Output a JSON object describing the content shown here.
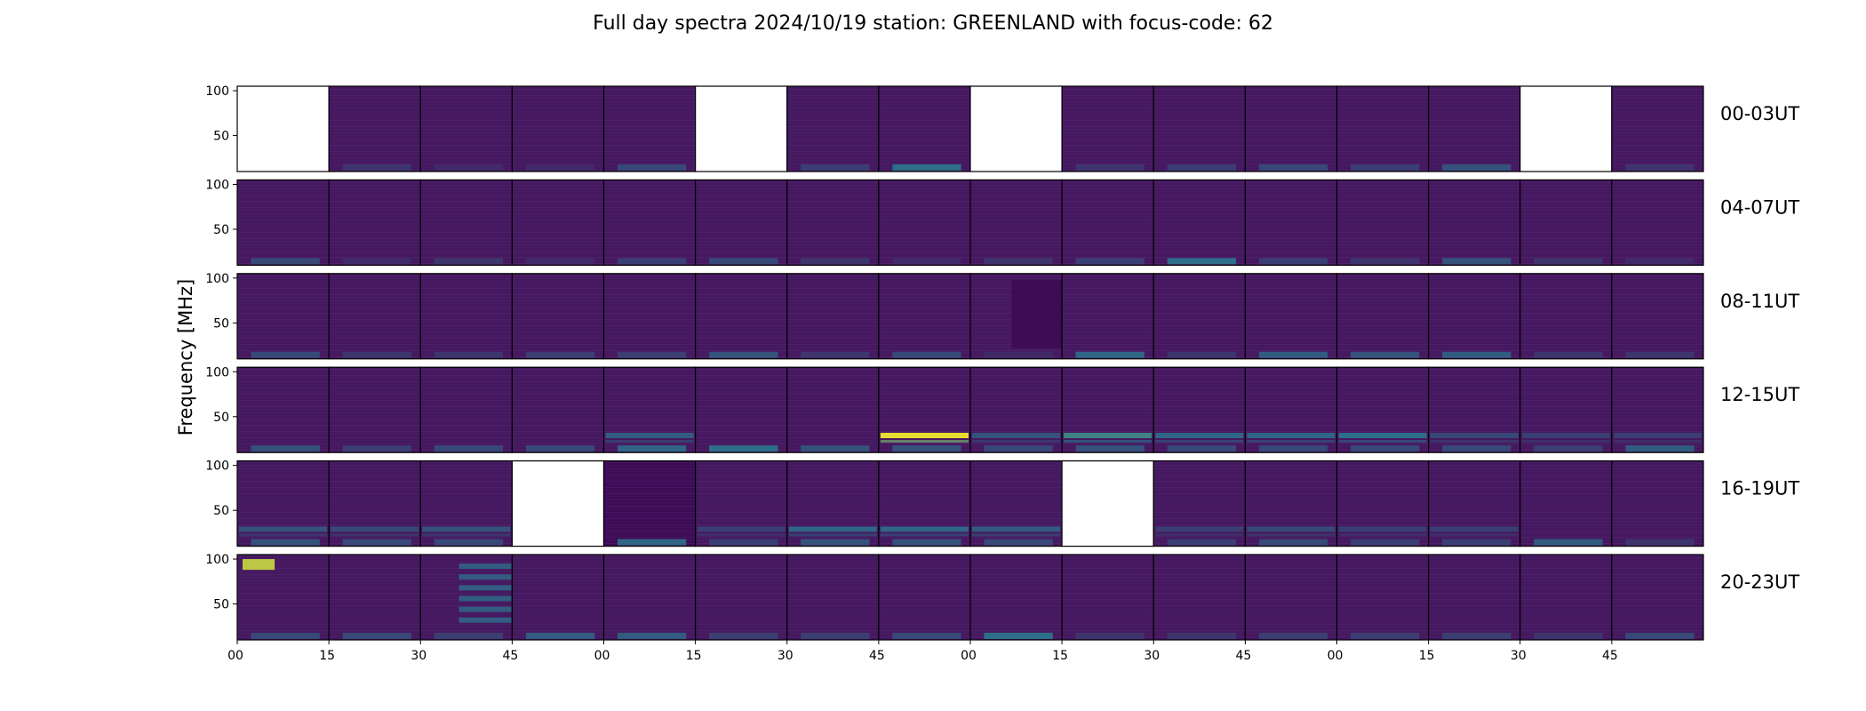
{
  "chart_data": {
    "type": "heatmap",
    "title": "Full day spectra 2024/10/19 station: GREENLAND with focus-code: 62",
    "ylabel": "Frequency [MHz]",
    "xlabel": "",
    "ylim": [
      10,
      105
    ],
    "y_ticks": [
      "100",
      "50"
    ],
    "x_ticks": [
      "00",
      "15",
      "30",
      "45",
      "00",
      "15",
      "30",
      "45",
      "00",
      "15",
      "30",
      "45",
      "00",
      "15",
      "30",
      "45"
    ],
    "colormap": "viridis",
    "colors": {
      "low": "#46185f",
      "mid": "#2a788e",
      "high": "#fde725",
      "frame": "#000000"
    },
    "rows": [
      {
        "label": "00-03UT",
        "panels": [
          {
            "data": false
          },
          {
            "data": true,
            "burst": 0.15
          },
          {
            "data": true,
            "burst": 0.1
          },
          {
            "data": true,
            "burst": 0.1
          },
          {
            "data": true,
            "burst": 0.25
          },
          {
            "data": false
          },
          {
            "data": true,
            "burst": 0.2
          },
          {
            "data": true,
            "burst": 0.45
          },
          {
            "data": false
          },
          {
            "data": true,
            "burst": 0.15
          },
          {
            "data": true,
            "burst": 0.2
          },
          {
            "data": true,
            "burst": 0.25
          },
          {
            "data": true,
            "burst": 0.2
          },
          {
            "data": true,
            "burst": 0.3
          },
          {
            "data": false
          },
          {
            "data": true,
            "burst": 0.15
          }
        ]
      },
      {
        "label": "04-07UT",
        "panels": [
          {
            "data": true,
            "burst": 0.25
          },
          {
            "data": true,
            "burst": 0.1
          },
          {
            "data": true,
            "burst": 0.15
          },
          {
            "data": true,
            "burst": 0.1
          },
          {
            "data": true,
            "burst": 0.2
          },
          {
            "data": true,
            "burst": 0.25
          },
          {
            "data": true,
            "burst": 0.15
          },
          {
            "data": true,
            "burst": 0.1
          },
          {
            "data": true,
            "burst": 0.15
          },
          {
            "data": true,
            "burst": 0.2
          },
          {
            "data": true,
            "burst": 0.45
          },
          {
            "data": true,
            "burst": 0.2
          },
          {
            "data": true,
            "burst": 0.15
          },
          {
            "data": true,
            "burst": 0.3
          },
          {
            "data": true,
            "burst": 0.15
          },
          {
            "data": true,
            "burst": 0.1
          }
        ]
      },
      {
        "label": "08-11UT",
        "panels": [
          {
            "data": true,
            "burst": 0.25
          },
          {
            "data": true,
            "burst": 0.15
          },
          {
            "data": true,
            "burst": 0.15
          },
          {
            "data": true,
            "burst": 0.2
          },
          {
            "data": true,
            "burst": 0.2
          },
          {
            "data": true,
            "burst": 0.3
          },
          {
            "data": true,
            "burst": 0.15
          },
          {
            "data": true,
            "burst": 0.25
          },
          {
            "data": true,
            "burst": 0.1,
            "gap": true
          },
          {
            "data": true,
            "burst": 0.4
          },
          {
            "data": true,
            "burst": 0.15
          },
          {
            "data": true,
            "burst": 0.35
          },
          {
            "data": true,
            "burst": 0.3
          },
          {
            "data": true,
            "burst": 0.35
          },
          {
            "data": true,
            "burst": 0.15
          },
          {
            "data": true,
            "burst": 0.15
          }
        ]
      },
      {
        "label": "12-15UT",
        "panels": [
          {
            "data": true,
            "burst": 0.3
          },
          {
            "data": true,
            "burst": 0.2
          },
          {
            "data": true,
            "burst": 0.25
          },
          {
            "data": true,
            "burst": 0.25
          },
          {
            "data": true,
            "burst": 0.4,
            "band": 0.35
          },
          {
            "data": true,
            "burst": 0.45
          },
          {
            "data": true,
            "burst": 0.3
          },
          {
            "data": true,
            "burst": 0.3,
            "band": 0.95
          },
          {
            "data": true,
            "burst": 0.25,
            "band": 0.3
          },
          {
            "data": true,
            "burst": 0.3,
            "band": 0.55
          },
          {
            "data": true,
            "burst": 0.25,
            "band": 0.4
          },
          {
            "data": true,
            "burst": 0.25,
            "band": 0.4
          },
          {
            "data": true,
            "burst": 0.25,
            "band": 0.45
          },
          {
            "data": true,
            "burst": 0.25,
            "band": 0.25
          },
          {
            "data": true,
            "burst": 0.2,
            "band": 0.2
          },
          {
            "data": true,
            "burst": 0.35,
            "band": 0.2
          }
        ]
      },
      {
        "label": "16-19UT",
        "panels": [
          {
            "data": true,
            "burst": 0.3,
            "band": 0.3
          },
          {
            "data": true,
            "burst": 0.25,
            "band": 0.25
          },
          {
            "data": true,
            "burst": 0.25,
            "band": 0.3
          },
          {
            "data": false
          },
          {
            "data": true,
            "burst": 0.4,
            "dark": true
          },
          {
            "data": true,
            "burst": 0.2,
            "band": 0.2
          },
          {
            "data": true,
            "burst": 0.3,
            "band": 0.4
          },
          {
            "data": true,
            "burst": 0.3,
            "band": 0.4
          },
          {
            "data": true,
            "burst": 0.25,
            "band": 0.35
          },
          {
            "data": false
          },
          {
            "data": true,
            "burst": 0.2,
            "band": 0.2
          },
          {
            "data": true,
            "burst": 0.25,
            "band": 0.25
          },
          {
            "data": true,
            "burst": 0.2,
            "band": 0.2
          },
          {
            "data": true,
            "burst": 0.2,
            "band": 0.2
          },
          {
            "data": true,
            "burst": 0.35
          },
          {
            "data": true,
            "burst": 0.15
          }
        ]
      },
      {
        "label": "20-23UT",
        "panels": [
          {
            "data": true,
            "burst": 0.25,
            "top": 0.85
          },
          {
            "data": true,
            "burst": 0.25
          },
          {
            "data": true,
            "burst": 0.2,
            "stripes": true
          },
          {
            "data": true,
            "burst": 0.35
          },
          {
            "data": true,
            "burst": 0.35
          },
          {
            "data": true,
            "burst": 0.2
          },
          {
            "data": true,
            "burst": 0.2
          },
          {
            "data": true,
            "burst": 0.25
          },
          {
            "data": true,
            "burst": 0.45
          },
          {
            "data": true,
            "burst": 0.15
          },
          {
            "data": true,
            "burst": 0.15
          },
          {
            "data": true,
            "burst": 0.2
          },
          {
            "data": true,
            "burst": 0.2
          },
          {
            "data": true,
            "burst": 0.2
          },
          {
            "data": true,
            "burst": 0.15
          },
          {
            "data": true,
            "burst": 0.25
          }
        ]
      }
    ]
  }
}
